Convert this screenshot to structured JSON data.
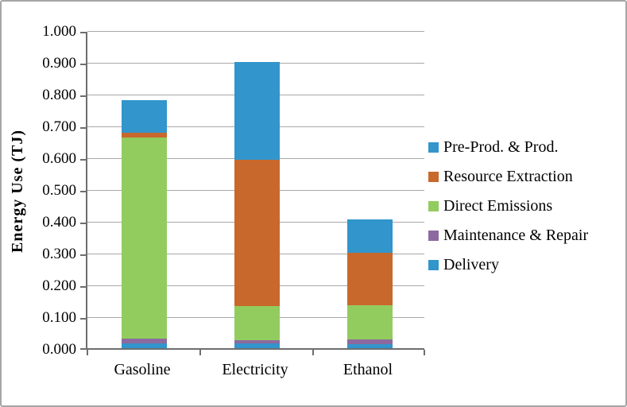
{
  "chart_data": {
    "type": "bar",
    "stacked": true,
    "title": "",
    "ylabel": "Energy Use (TJ)",
    "xlabel": "",
    "ylim": [
      0,
      1.0
    ],
    "ytick_labels": [
      "0.000",
      "0.100",
      "0.200",
      "0.300",
      "0.400",
      "0.500",
      "0.600",
      "0.700",
      "0.800",
      "0.900",
      "1.000"
    ],
    "categories": [
      "Gasoline",
      "Electricity",
      "Ethanol"
    ],
    "series": [
      {
        "name": "Delivery",
        "color": "#3295CB",
        "values": [
          0.015,
          0.015,
          0.013
        ]
      },
      {
        "name": "Maintenance & Repair",
        "color": "#8C6A9F",
        "values": [
          0.015,
          0.01,
          0.015
        ]
      },
      {
        "name": "Direct Emissions",
        "color": "#92CC5F",
        "values": [
          0.633,
          0.108,
          0.107
        ]
      },
      {
        "name": "Resource Extraction",
        "color": "#C8682C",
        "values": [
          0.015,
          0.459,
          0.165
        ]
      },
      {
        "name": "Pre-Prod. & Prod.",
        "color": "#3295CB",
        "values": [
          0.102,
          0.308,
          0.105
        ]
      }
    ],
    "legend": {
      "position": "right",
      "order": [
        "Pre-Prod. & Prod.",
        "Resource Extraction",
        "Direct Emissions",
        "Maintenance & Repair",
        "Delivery"
      ]
    },
    "grid": true
  },
  "colors": {
    "background": "#FFFFFF",
    "frame_border": "#A6A6A6",
    "axis": "#6E6E6E",
    "gridline": "#A8A8A8",
    "text": "#000000"
  }
}
